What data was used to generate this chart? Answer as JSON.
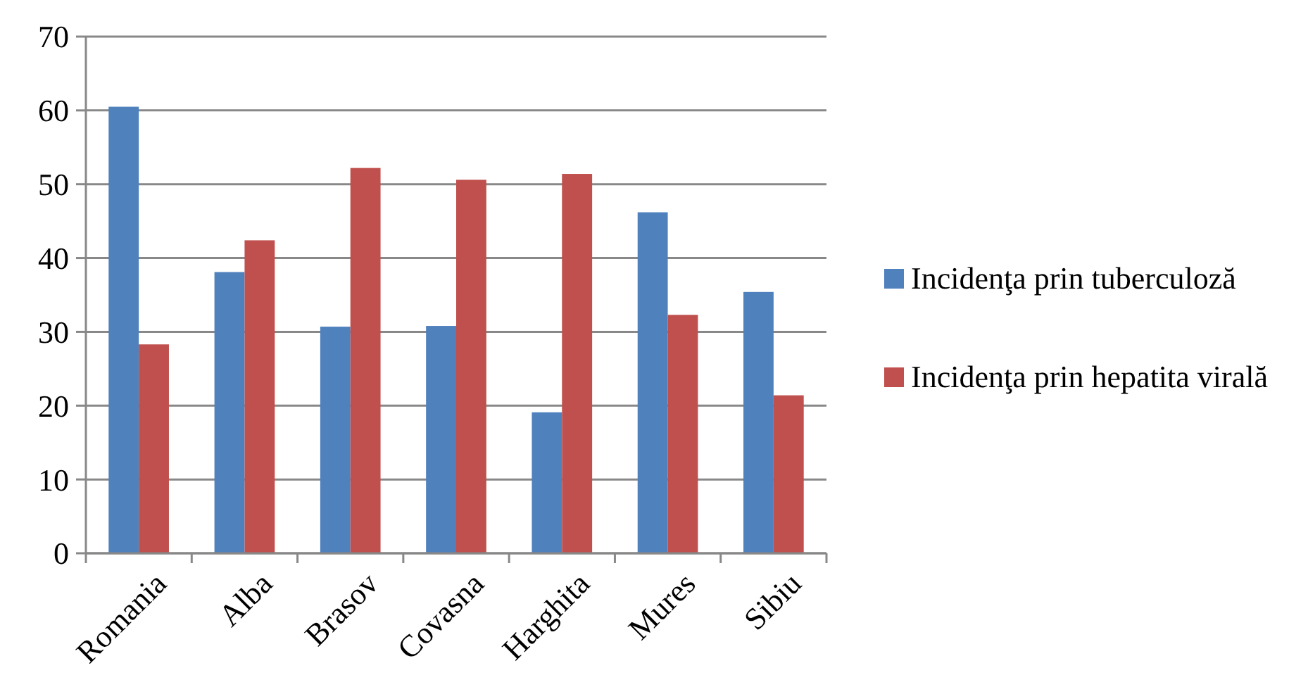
{
  "chart_data": {
    "type": "bar",
    "categories": [
      "Romania",
      "Alba",
      "Brasov",
      "Covasna",
      "Harghita",
      "Mures",
      "Sibiu"
    ],
    "series": [
      {
        "name": "Incidenţa prin tuberculoză",
        "color": "#4f81bd",
        "values": [
          60.5,
          38.1,
          30.7,
          30.8,
          19.1,
          46.2,
          35.4
        ]
      },
      {
        "name": "Incidenţa prin hepatita virală",
        "color": "#c0504d",
        "values": [
          28.3,
          42.4,
          52.2,
          50.6,
          51.4,
          32.3,
          21.4
        ]
      }
    ],
    "ylim": [
      0,
      70
    ],
    "yticks": [
      0,
      10,
      20,
      30,
      40,
      50,
      60,
      70
    ],
    "grid": "y",
    "legend": "right"
  }
}
